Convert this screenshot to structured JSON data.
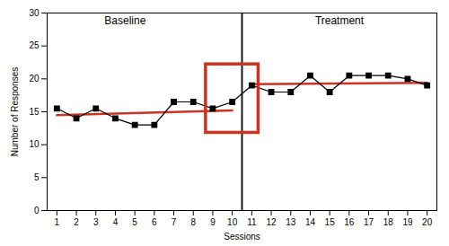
{
  "chart_data": {
    "type": "line",
    "x": [
      1,
      2,
      3,
      4,
      5,
      6,
      7,
      8,
      9,
      10,
      11,
      12,
      13,
      14,
      15,
      16,
      17,
      18,
      19,
      20
    ],
    "values": [
      15.5,
      14,
      15.5,
      14,
      13,
      13,
      16.5,
      16.5,
      15.5,
      16.5,
      19,
      18,
      18,
      20.5,
      18,
      20.5,
      20.5,
      20.5,
      20,
      19
    ],
    "color": "black",
    "marker": "square",
    "xlabel": "Sessions",
    "ylabel": "Number of Responses",
    "xlim": [
      0.5,
      20.5
    ],
    "ylim": [
      0,
      30
    ],
    "xticks": [
      1,
      2,
      3,
      4,
      5,
      6,
      7,
      8,
      9,
      10,
      11,
      12,
      13,
      14,
      15,
      16,
      17,
      18,
      19,
      20
    ],
    "yticks": [
      0,
      5,
      10,
      15,
      20,
      25,
      30
    ],
    "grid": false,
    "trend_lines": [
      {
        "x": [
          1,
          10
        ],
        "values": [
          14.5,
          15.2
        ],
        "color": "#cc3322"
      },
      {
        "x": [
          11,
          20
        ],
        "values": [
          19.2,
          19.4
        ],
        "color": "#cc3322"
      }
    ],
    "phase_line": 10.5,
    "highlight": {
      "x": 8.65,
      "y": 11.8,
      "width": 2.7,
      "height": 10.4,
      "color": "#cc3322"
    },
    "annotations": [
      {
        "text": "Baseline",
        "x": 4.5,
        "y": 29.5
      },
      {
        "text": "Treatment",
        "x": 15.5,
        "y": 29.5
      }
    ]
  }
}
